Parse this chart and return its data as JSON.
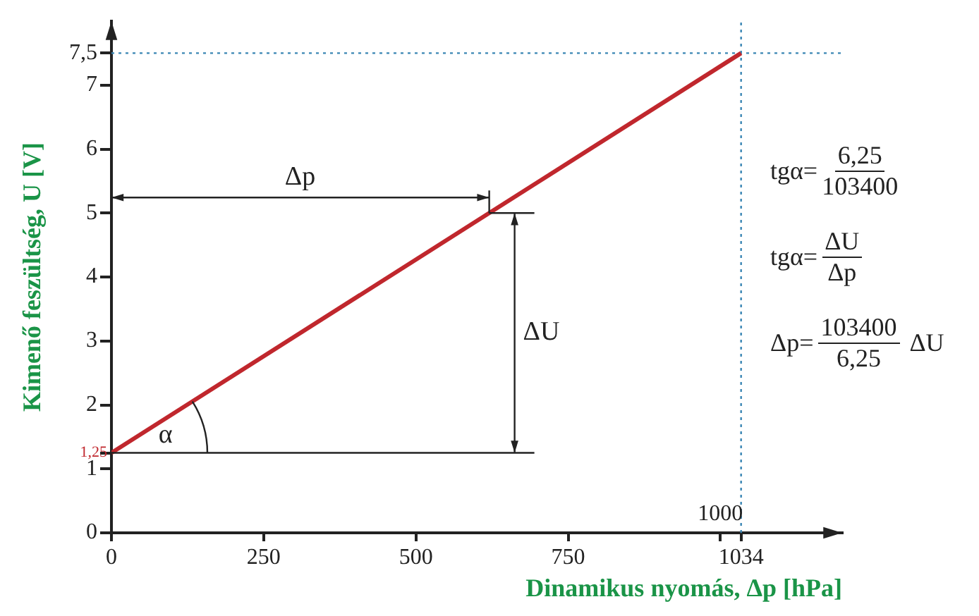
{
  "chart_data": {
    "type": "line",
    "xlabel": "Dinamikus nyomás, Δp [hPa]",
    "ylabel": "Kimenő feszültség, U [V]",
    "x": [
      0,
      1034
    ],
    "series": [
      {
        "color": "#c0272d",
        "values": [
          1.25,
          7.5
        ]
      }
    ],
    "xlim": [
      0,
      1200
    ],
    "ylim": [
      0,
      8
    ],
    "xticks": [
      0,
      250,
      500,
      750,
      {
        "value": 1000,
        "label": null
      },
      1034
    ],
    "yticks": [
      0,
      1,
      {
        "value": 1.25,
        "label": null
      },
      2,
      3,
      4,
      5,
      6,
      7,
      {
        "value": 7.5,
        "label": "7,5"
      }
    ],
    "marker": "none",
    "line_style": "solid",
    "ref_lines": [
      {
        "axis": "y",
        "value": 7.5,
        "color": "#3a86b4",
        "line_style": "dotted"
      },
      {
        "axis": "x",
        "value": 1034,
        "color": "#3a86b4",
        "line_style": "dotted"
      }
    ],
    "annotations": [
      {
        "text": "1,25",
        "x": 0,
        "y": 1.25
      },
      "1000",
      "Δp",
      "ΔU",
      "α",
      "tgα=",
      "6,25",
      "103400",
      "tgα=",
      "ΔU",
      "Δp",
      "Δp=",
      "103400",
      "6,25",
      "ΔU"
    ]
  }
}
